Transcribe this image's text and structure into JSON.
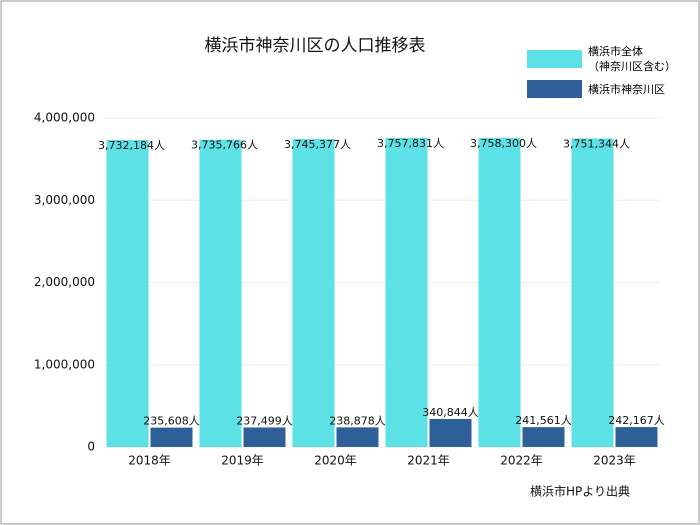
{
  "chart_data": {
    "type": "bar",
    "title": "横浜市神奈川区の人口推移表",
    "categories": [
      "2018年",
      "2019年",
      "2020年",
      "2021年",
      "2022年",
      "2023年"
    ],
    "series": [
      {
        "name": "横浜市全体\n（神奈川区含む）",
        "color": "#5ce1e6",
        "values": [
          3732184,
          3735766,
          3745377,
          3757831,
          3758300,
          3751344
        ],
        "value_labels": [
          "3,732,184人",
          "3,735,766人",
          "3,745,377人",
          "3,757,831人",
          "3,758,300人",
          "3,751,344人"
        ]
      },
      {
        "name": "横浜市神奈川区",
        "color": "#2e5f99",
        "values": [
          235608,
          237499,
          238878,
          340844,
          241561,
          242167
        ],
        "value_labels": [
          "235,608人",
          "237,499人",
          "238,878人",
          "340,844人",
          "241,561人",
          "242,167人"
        ]
      }
    ],
    "ylim": [
      0,
      4000000
    ],
    "yticks": [
      0,
      {
        "value": 1000000,
        "label": "1,000,000"
      },
      {
        "value": 2000000,
        "label": "2,000,000"
      },
      {
        "value": 3000000,
        "label": "3,000,000"
      },
      {
        "value": 4000000,
        "label": "4,000,000"
      }
    ],
    "grid": true,
    "legend": "top-right",
    "note": "横浜市HPより出典"
  }
}
